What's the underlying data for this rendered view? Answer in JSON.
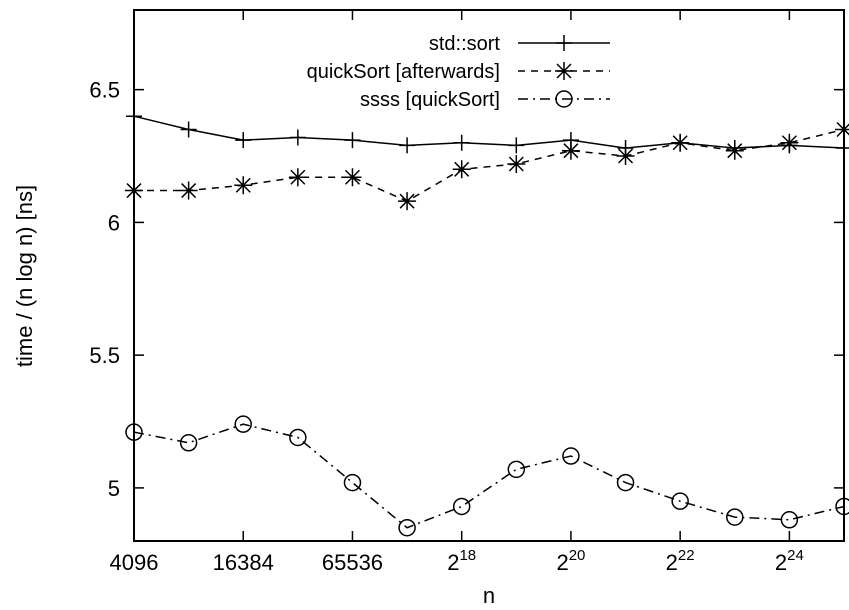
{
  "chart_data": {
    "type": "line",
    "title": "",
    "xlabel": "n",
    "ylabel": "time / (n log n) [ns]",
    "x_scale": "log2",
    "x_values": [
      "2^12",
      "2^13",
      "2^14",
      "2^15",
      "2^16",
      "2^17",
      "2^18",
      "2^19",
      "2^20",
      "2^21",
      "2^22",
      "2^23",
      "2^24",
      "2^25"
    ],
    "xlim": [
      "2^12",
      "2^25"
    ],
    "ylim": [
      4.8,
      6.8
    ],
    "grid": false,
    "legend_position": "top-right",
    "x_ticks": [
      {
        "base": "4096",
        "exp": ""
      },
      {
        "base": "16384",
        "exp": ""
      },
      {
        "base": "65536",
        "exp": ""
      },
      {
        "base": "2",
        "exp": "18"
      },
      {
        "base": "2",
        "exp": "20"
      },
      {
        "base": "2",
        "exp": "22"
      },
      {
        "base": "2",
        "exp": "24"
      }
    ],
    "y_ticks": [
      "5",
      "5.5",
      "6",
      "6.5"
    ],
    "series": [
      {
        "name": "std::sort",
        "marker": "plus",
        "dash": "solid",
        "values": [
          6.4,
          6.35,
          6.31,
          6.32,
          6.31,
          6.29,
          6.3,
          6.29,
          6.31,
          6.28,
          6.3,
          6.28,
          6.29,
          6.28
        ]
      },
      {
        "name": "quickSort [afterwards]",
        "marker": "star",
        "dash": "dashed",
        "values": [
          6.12,
          6.12,
          6.14,
          6.17,
          6.17,
          6.08,
          6.2,
          6.22,
          6.27,
          6.25,
          6.3,
          6.27,
          6.3,
          6.35
        ]
      },
      {
        "name": "ssss [quickSort]",
        "marker": "circle",
        "dash": "dashdot",
        "values": [
          5.21,
          5.17,
          5.24,
          5.19,
          5.02,
          4.85,
          4.93,
          5.07,
          5.12,
          5.02,
          4.95,
          4.89,
          4.88,
          4.93
        ]
      }
    ]
  }
}
